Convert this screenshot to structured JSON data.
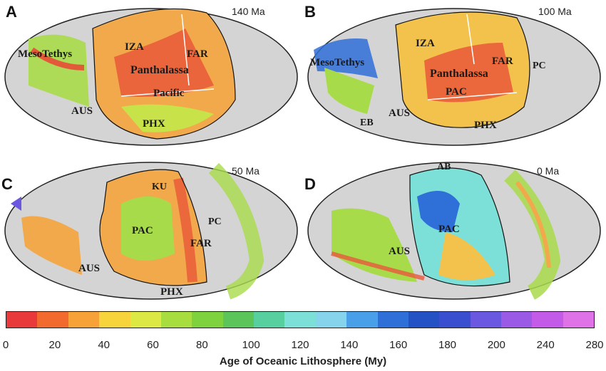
{
  "panels": [
    {
      "letter": "A",
      "age": "140 Ma",
      "labels": [
        "MesoTethys",
        "IZA",
        "FAR",
        "Panthalassa",
        "Pacific",
        "AUS",
        "PHX"
      ]
    },
    {
      "letter": "B",
      "age": "100 Ma",
      "labels": [
        "MesoTethys",
        "IZA",
        "FAR",
        "PC",
        "Panthalassa",
        "PAC",
        "AUS",
        "EB",
        "PHX"
      ]
    },
    {
      "letter": "C",
      "age": "50 Ma",
      "labels": [
        "KU",
        "PAC",
        "PC",
        "FAR",
        "AUS",
        "PHX"
      ]
    },
    {
      "letter": "D",
      "age": "0 Ma",
      "labels": [
        "AB",
        "PAC",
        "AUS"
      ]
    }
  ],
  "colorbar": {
    "title": "Age of Oceanic Lithosphere (My)",
    "ticks": [
      "0",
      "20",
      "40",
      "60",
      "80",
      "100",
      "120",
      "140",
      "160",
      "180",
      "200",
      "240",
      "280"
    ],
    "colors": [
      "#e83a3a",
      "#f26a2e",
      "#f7a238",
      "#f7d43c",
      "#dce843",
      "#a7dd3f",
      "#7ed23d",
      "#5cc55a",
      "#58cf9e",
      "#7ce0d9",
      "#86d3ec",
      "#4aa0e8",
      "#2f6fd8",
      "#2452c4",
      "#3a4ed0",
      "#6a58e0",
      "#9a5ae6",
      "#c45ae8",
      "#e072e8"
    ]
  }
}
